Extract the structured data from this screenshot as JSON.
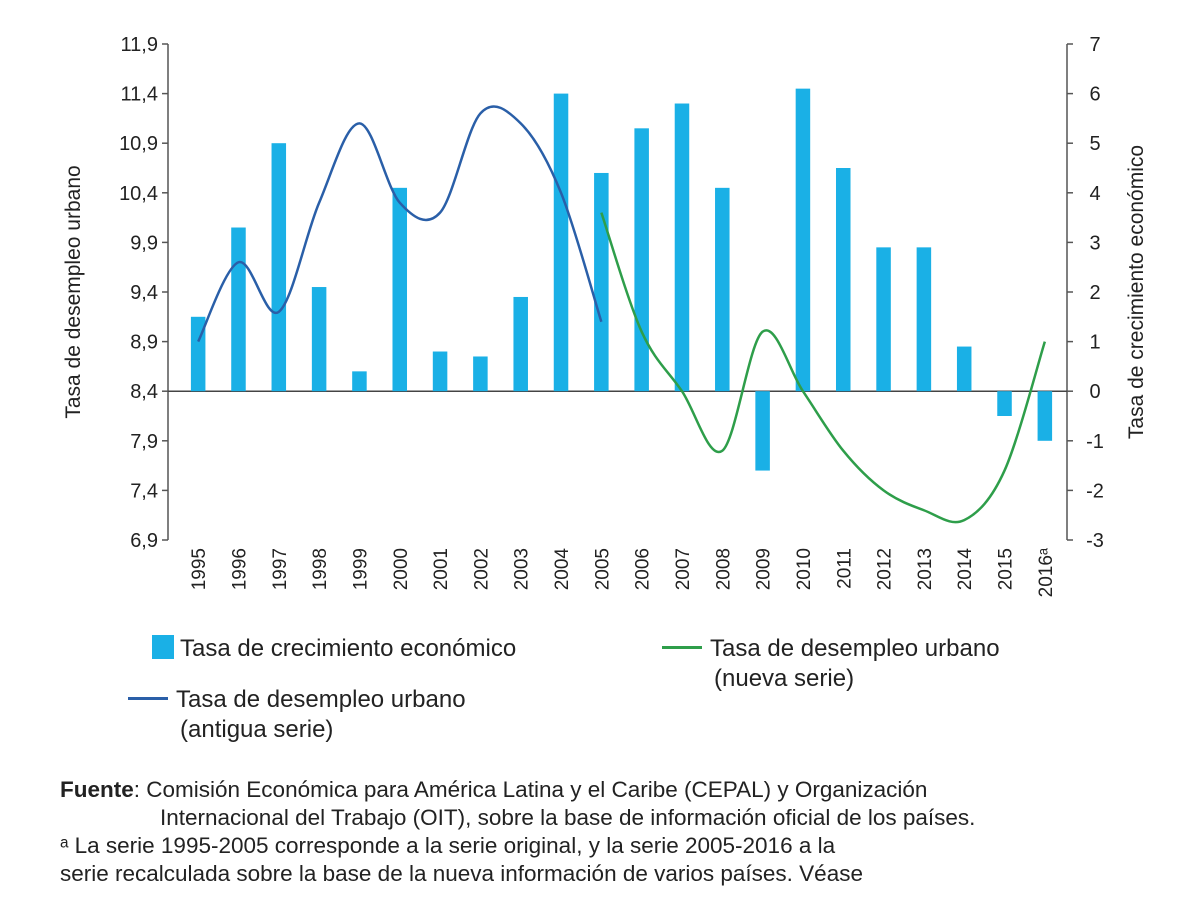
{
  "chart_data": {
    "type": "bar",
    "categories": [
      "1995",
      "1996",
      "1997",
      "1998",
      "1999",
      "2000",
      "2001",
      "2002",
      "2003",
      "2004",
      "2005",
      "2006",
      "2007",
      "2008",
      "2009",
      "2010",
      "2011",
      "2012",
      "2013",
      "2014",
      "2015",
      "2016ᵃ"
    ],
    "series": [
      {
        "name": "Tasa de crecimiento económico",
        "type": "bar",
        "axis": "right",
        "color": "#1ab0e6",
        "values": [
          1.5,
          3.3,
          5.0,
          2.1,
          0.4,
          4.1,
          0.8,
          0.7,
          1.9,
          6.0,
          4.4,
          5.3,
          5.8,
          4.1,
          -1.6,
          6.1,
          4.5,
          2.9,
          2.9,
          0.9,
          -0.5,
          -1.0
        ]
      },
      {
        "name": "Tasa de desempleo urbano (antigua serie)",
        "type": "line",
        "axis": "left",
        "color": "#2a5fa8",
        "values": [
          8.9,
          9.7,
          9.2,
          10.3,
          11.1,
          10.3,
          10.2,
          11.2,
          11.1,
          10.4,
          9.1,
          null,
          null,
          null,
          null,
          null,
          null,
          null,
          null,
          null,
          null,
          null
        ]
      },
      {
        "name": "Tasa de desempleo urbano (nueva serie)",
        "type": "line",
        "axis": "left",
        "color": "#2e9e4a",
        "values": [
          null,
          null,
          null,
          null,
          null,
          null,
          null,
          null,
          null,
          null,
          10.2,
          9.0,
          8.4,
          7.8,
          9.0,
          8.4,
          7.8,
          7.4,
          7.2,
          7.1,
          7.6,
          8.9
        ]
      }
    ],
    "ylabel_left": "Tasa de desempleo urbano",
    "ylabel_right": "Tasa de crecimiento económico",
    "ylim_left": [
      6.9,
      11.9
    ],
    "yticks_left": [
      "6,9",
      "7,4",
      "7,9",
      "8,4",
      "8,9",
      "9,4",
      "9,9",
      "10,4",
      "10,9",
      "11,4",
      "11,9"
    ],
    "ylim_right": [
      -3,
      7
    ],
    "yticks_right": [
      "-3",
      "-2",
      "-1",
      "0",
      "1",
      "2",
      "3",
      "4",
      "5",
      "6",
      "7"
    ],
    "grid": false
  },
  "legend": {
    "bar_label": "Tasa de crecimiento económico",
    "new_line1": "Tasa de desempleo urbano",
    "new_line2": "(nueva serie)",
    "old_line1": "Tasa de desempleo urbano",
    "old_line2": "(antigua serie)"
  },
  "source": {
    "label": "Fuente",
    "text1": ": Comisión Económica para América Latina y el Caribe (CEPAL) y Organización",
    "text2": "Internacional del Trabajo (OIT), sobre la base de información oficial de los países.",
    "note": "ᵃ La serie 1995-2005 corresponde a la serie original, y la serie 2005-2016 a la",
    "note2": "serie recalculada sobre la base de la nueva información de varios países. Véase"
  }
}
